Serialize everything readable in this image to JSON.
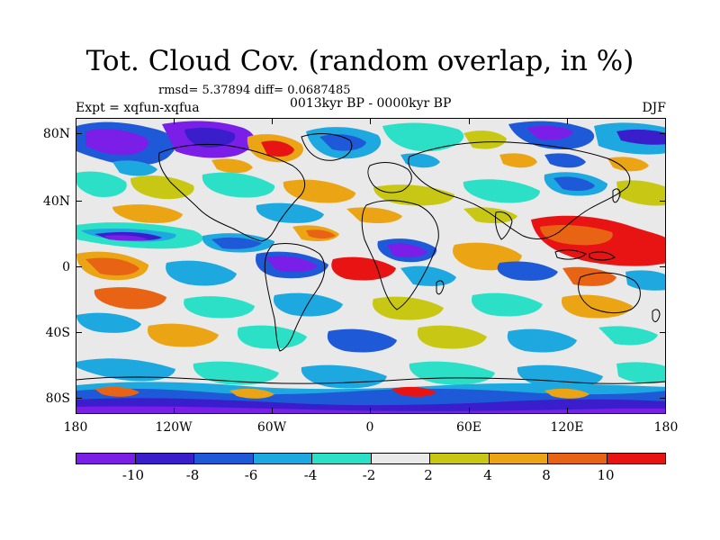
{
  "header": {
    "title": "Tot. Cloud Cov. (random overlap, in %)",
    "stats": "rmsd= 5.37894 diff= 0.0687485",
    "experiment": "Expt = xqfun-xqfua",
    "period": "0013kyr BP - 0000kyr BP",
    "season": "DJF"
  },
  "axes": {
    "y_labels": [
      "80N",
      "40N",
      "0",
      "40S",
      "80S"
    ],
    "x_labels": [
      "180",
      "120W",
      "60W",
      "0",
      "60E",
      "120E",
      "180"
    ]
  },
  "colorbar": {
    "labels": [
      "-10",
      "-8",
      "-6",
      "-4",
      "-2",
      "2",
      "4",
      "8",
      "10"
    ],
    "levels": [
      -10,
      -8,
      -6,
      -4,
      -2,
      2,
      4,
      8,
      10
    ],
    "colors": [
      "#7a1ee8",
      "#3a1ecc",
      "#1e5ad8",
      "#1ea8e0",
      "#2ce0c8",
      "#e9e9e9",
      "#c8c814",
      "#eba414",
      "#e86414",
      "#e81414"
    ]
  },
  "map": {
    "background_color": "#e9e9e9",
    "projection": "cylindrical equidistant",
    "lon_range": [
      -180,
      180
    ],
    "lat_range": [
      -90,
      90
    ],
    "field": "total cloud cover anomaly (%)"
  }
}
